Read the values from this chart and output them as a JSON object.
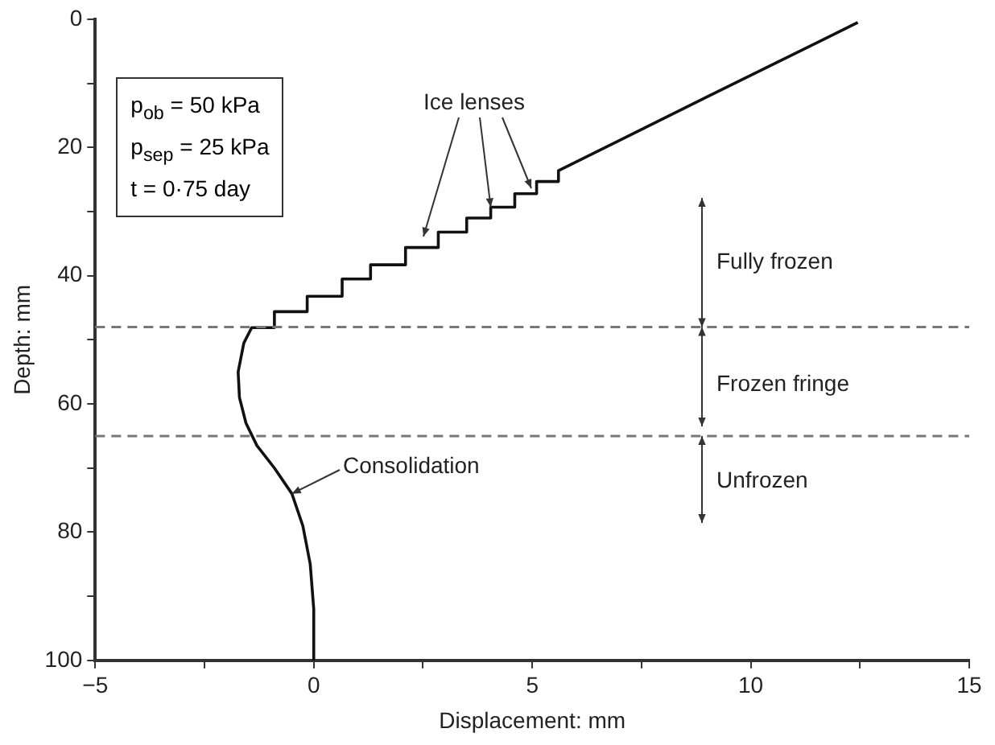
{
  "chart_data": {
    "type": "line",
    "xlabel": "Displacement: mm",
    "ylabel": "Depth: mm",
    "xlim": [
      -5,
      15
    ],
    "xticks": [
      -5,
      {
        "value": -2.5,
        "label": null
      },
      0,
      {
        "value": 2.5,
        "label": null
      },
      5,
      {
        "value": 7.5,
        "label": null
      },
      10,
      {
        "value": 12.5,
        "label": null
      },
      15
    ],
    "ylim": [
      100,
      0
    ],
    "yticks": [
      0,
      {
        "value": 10,
        "label": null
      },
      20,
      {
        "value": 30,
        "label": null
      },
      40,
      {
        "value": 50,
        "label": null
      },
      60,
      {
        "value": 70,
        "label": null
      },
      80,
      {
        "value": 90,
        "label": null
      },
      100
    ],
    "grid": false,
    "legend": false,
    "marker": "none",
    "line_style": "solid",
    "series": [
      {
        "color": "#111111",
        "x": [
          12.45,
          9.0,
          5.6,
          5.6,
          5.1,
          5.1,
          4.6,
          4.6,
          4.05,
          4.05,
          3.5,
          3.5,
          2.85,
          2.85,
          2.1,
          2.1,
          1.3,
          1.3,
          0.65,
          0.65,
          -0.15,
          -0.15,
          -0.9,
          -0.9,
          -1.42,
          -1.6,
          -1.73,
          -1.7,
          -1.55,
          -1.3,
          -0.9,
          -0.5,
          -0.25,
          -0.08,
          0,
          0
        ],
        "values": [
          0.5,
          12.1,
          23.6,
          25.3,
          25.3,
          27.2,
          27.2,
          29.3,
          29.3,
          31.0,
          31.0,
          33.2,
          33.2,
          35.6,
          35.6,
          38.3,
          38.3,
          40.5,
          40.5,
          43.2,
          43.2,
          45.6,
          45.6,
          48.1,
          48.1,
          50.5,
          55,
          59,
          63,
          66.5,
          70,
          74,
          79,
          85,
          92,
          100
        ]
      }
    ],
    "ref_lines": [
      {
        "axis": "y",
        "value": 48,
        "color": "#777777",
        "line_style": "dashed"
      },
      {
        "axis": "y",
        "value": 65,
        "color": "#777777",
        "line_style": "dashed"
      }
    ],
    "annotations": [
      "p$_{ob}$ = 50 kPa",
      "p$_{sep}$ = 25 kPa",
      "t = 0·75 day",
      {
        "text": "Ice lenses",
        "x": 4.05,
        "y": 29.3
      },
      {
        "text": "Consolidation",
        "x": -0.5,
        "y": 74
      },
      "Fully frozen",
      "Frozen fringe",
      "Unfrozen"
    ]
  }
}
